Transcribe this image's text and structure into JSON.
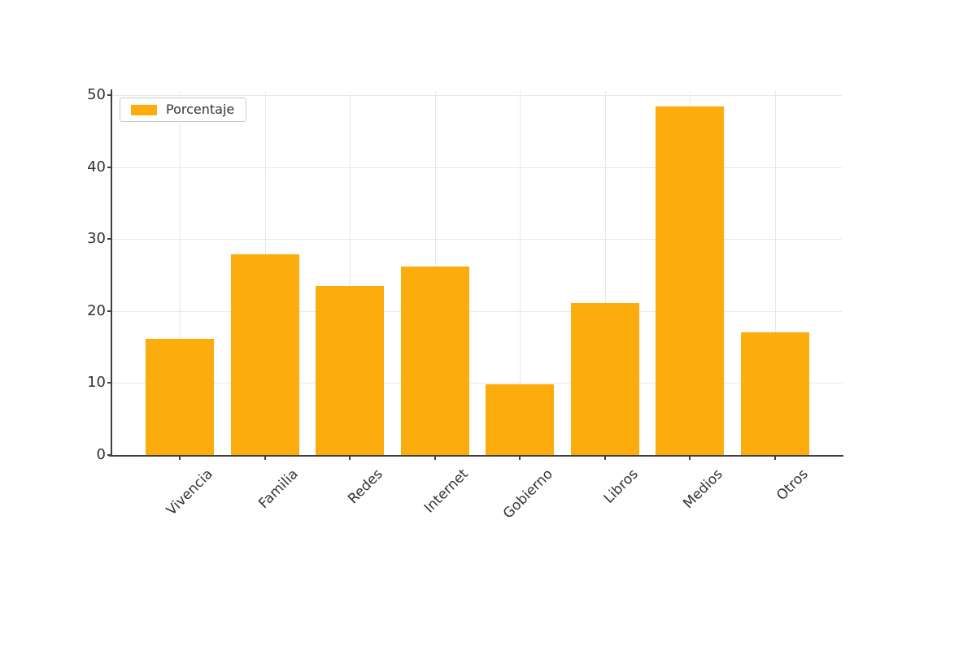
{
  "chart_data": {
    "type": "bar",
    "title": "",
    "xlabel": "",
    "ylabel": "",
    "categories": [
      "Vivencia",
      "Familia",
      "Redes",
      "Internet",
      "Gobierno",
      "Libros",
      "Medios",
      "Otros"
    ],
    "values": [
      16.2,
      27.9,
      23.5,
      26.2,
      9.8,
      21.1,
      48.5,
      17.1
    ],
    "series_name": "Porcentaje",
    "legend_label": "Porcentaje",
    "legend_position": "upper left",
    "yticks": [
      0,
      10,
      20,
      30,
      40,
      50
    ],
    "ylim": [
      0,
      50.6
    ],
    "grid": true,
    "x_label_rotation_deg": 45,
    "colors": {
      "bar": "#FCAC0D",
      "axis": "#3f3f3f",
      "grid": "#e8e8e8",
      "text": "#333333",
      "background": "#ffffff",
      "legend_border": "#cccccc"
    }
  }
}
